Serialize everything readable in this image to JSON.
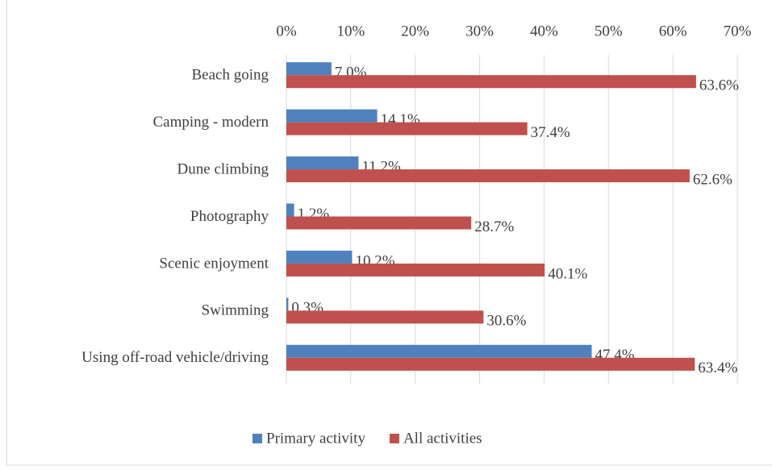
{
  "chart_data": {
    "type": "bar",
    "orientation": "horizontal",
    "categories": [
      "Beach going",
      "Camping - modern",
      "Dune climbing",
      "Photography",
      "Scenic enjoyment",
      "Swimming",
      "Using off-road vehicle/driving"
    ],
    "series": [
      {
        "name": "Primary activity",
        "color": "#4f81bd",
        "values": [
          7.0,
          14.1,
          11.2,
          1.2,
          10.2,
          0.3,
          47.4
        ],
        "value_labels": [
          "7.0%",
          "14.1%",
          "11.2%",
          "1.2%",
          "10.2%",
          "0.3%",
          "47.4%"
        ]
      },
      {
        "name": "All activities",
        "color": "#c0504d",
        "values": [
          63.6,
          37.4,
          62.6,
          28.7,
          40.1,
          30.6,
          63.4
        ],
        "value_labels": [
          "63.6%",
          "37.4%",
          "62.6%",
          "28.7%",
          "40.1%",
          "30.6%",
          "63.4%"
        ]
      }
    ],
    "xlim": [
      0,
      70
    ],
    "xticks": [
      {
        "value": 0,
        "label": "0%"
      },
      {
        "value": 10,
        "label": "10%"
      },
      {
        "value": 20,
        "label": "20%"
      },
      {
        "value": 30,
        "label": "30%"
      },
      {
        "value": 40,
        "label": "40%"
      },
      {
        "value": 50,
        "label": "50%"
      },
      {
        "value": 60,
        "label": "60%"
      },
      {
        "value": 70,
        "label": "70%"
      }
    ],
    "grid": true,
    "legend": "bottom"
  }
}
